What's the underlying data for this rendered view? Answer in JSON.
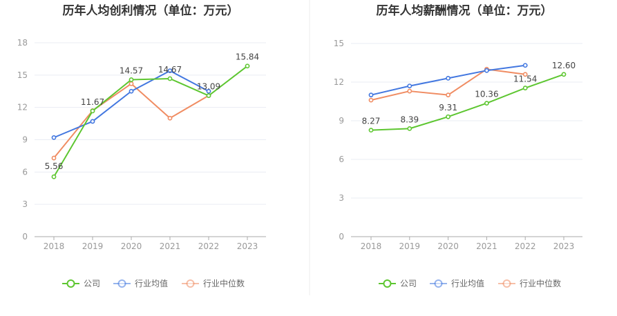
{
  "chart_data": [
    {
      "type": "line",
      "title": "历年人均创利情况（单位：万元）",
      "categories": [
        "2018",
        "2019",
        "2020",
        "2021",
        "2022",
        "2023"
      ],
      "ylim": [
        0,
        18
      ],
      "yticks": [
        "0",
        "3",
        "6",
        "9",
        "12",
        "15",
        "18"
      ],
      "series": [
        {
          "name": "公司",
          "color": "#5dc630",
          "values": [
            5.56,
            11.67,
            14.57,
            14.67,
            13.09,
            15.84
          ]
        },
        {
          "name": "行业均值",
          "color": "#4277e0",
          "values": [
            9.2,
            10.7,
            13.5,
            15.4,
            13.5,
            null
          ]
        },
        {
          "name": "行业中位数",
          "color": "#f08c62",
          "values": [
            7.3,
            11.7,
            14.2,
            11.0,
            13.1,
            null
          ]
        }
      ],
      "data_labels": [
        "5.56",
        "11.67",
        "14.57",
        "14.67",
        "13.09",
        "15.84"
      ],
      "legend": [
        "公司",
        "行业均值",
        "行业中位数"
      ]
    },
    {
      "type": "line",
      "title": "历年人均薪酬情况（单位：万元）",
      "categories": [
        "2018",
        "2019",
        "2020",
        "2021",
        "2022",
        "2023"
      ],
      "ylim": [
        0,
        15
      ],
      "yticks": [
        "0",
        "3",
        "6",
        "9",
        "12",
        "15"
      ],
      "series": [
        {
          "name": "公司",
          "color": "#5dc630",
          "values": [
            8.27,
            8.39,
            9.31,
            10.36,
            11.54,
            12.6
          ]
        },
        {
          "name": "行业均值",
          "color": "#4277e0",
          "values": [
            11.0,
            11.7,
            12.3,
            12.9,
            13.3,
            null
          ]
        },
        {
          "name": "行业中位数",
          "color": "#f08c62",
          "values": [
            10.6,
            11.3,
            11.0,
            13.0,
            12.6,
            null
          ]
        }
      ],
      "data_labels": [
        "8.27",
        "8.39",
        "9.31",
        "10.36",
        "11.54",
        "12.60"
      ],
      "legend": [
        "公司",
        "行业均值",
        "行业中位数"
      ]
    }
  ]
}
